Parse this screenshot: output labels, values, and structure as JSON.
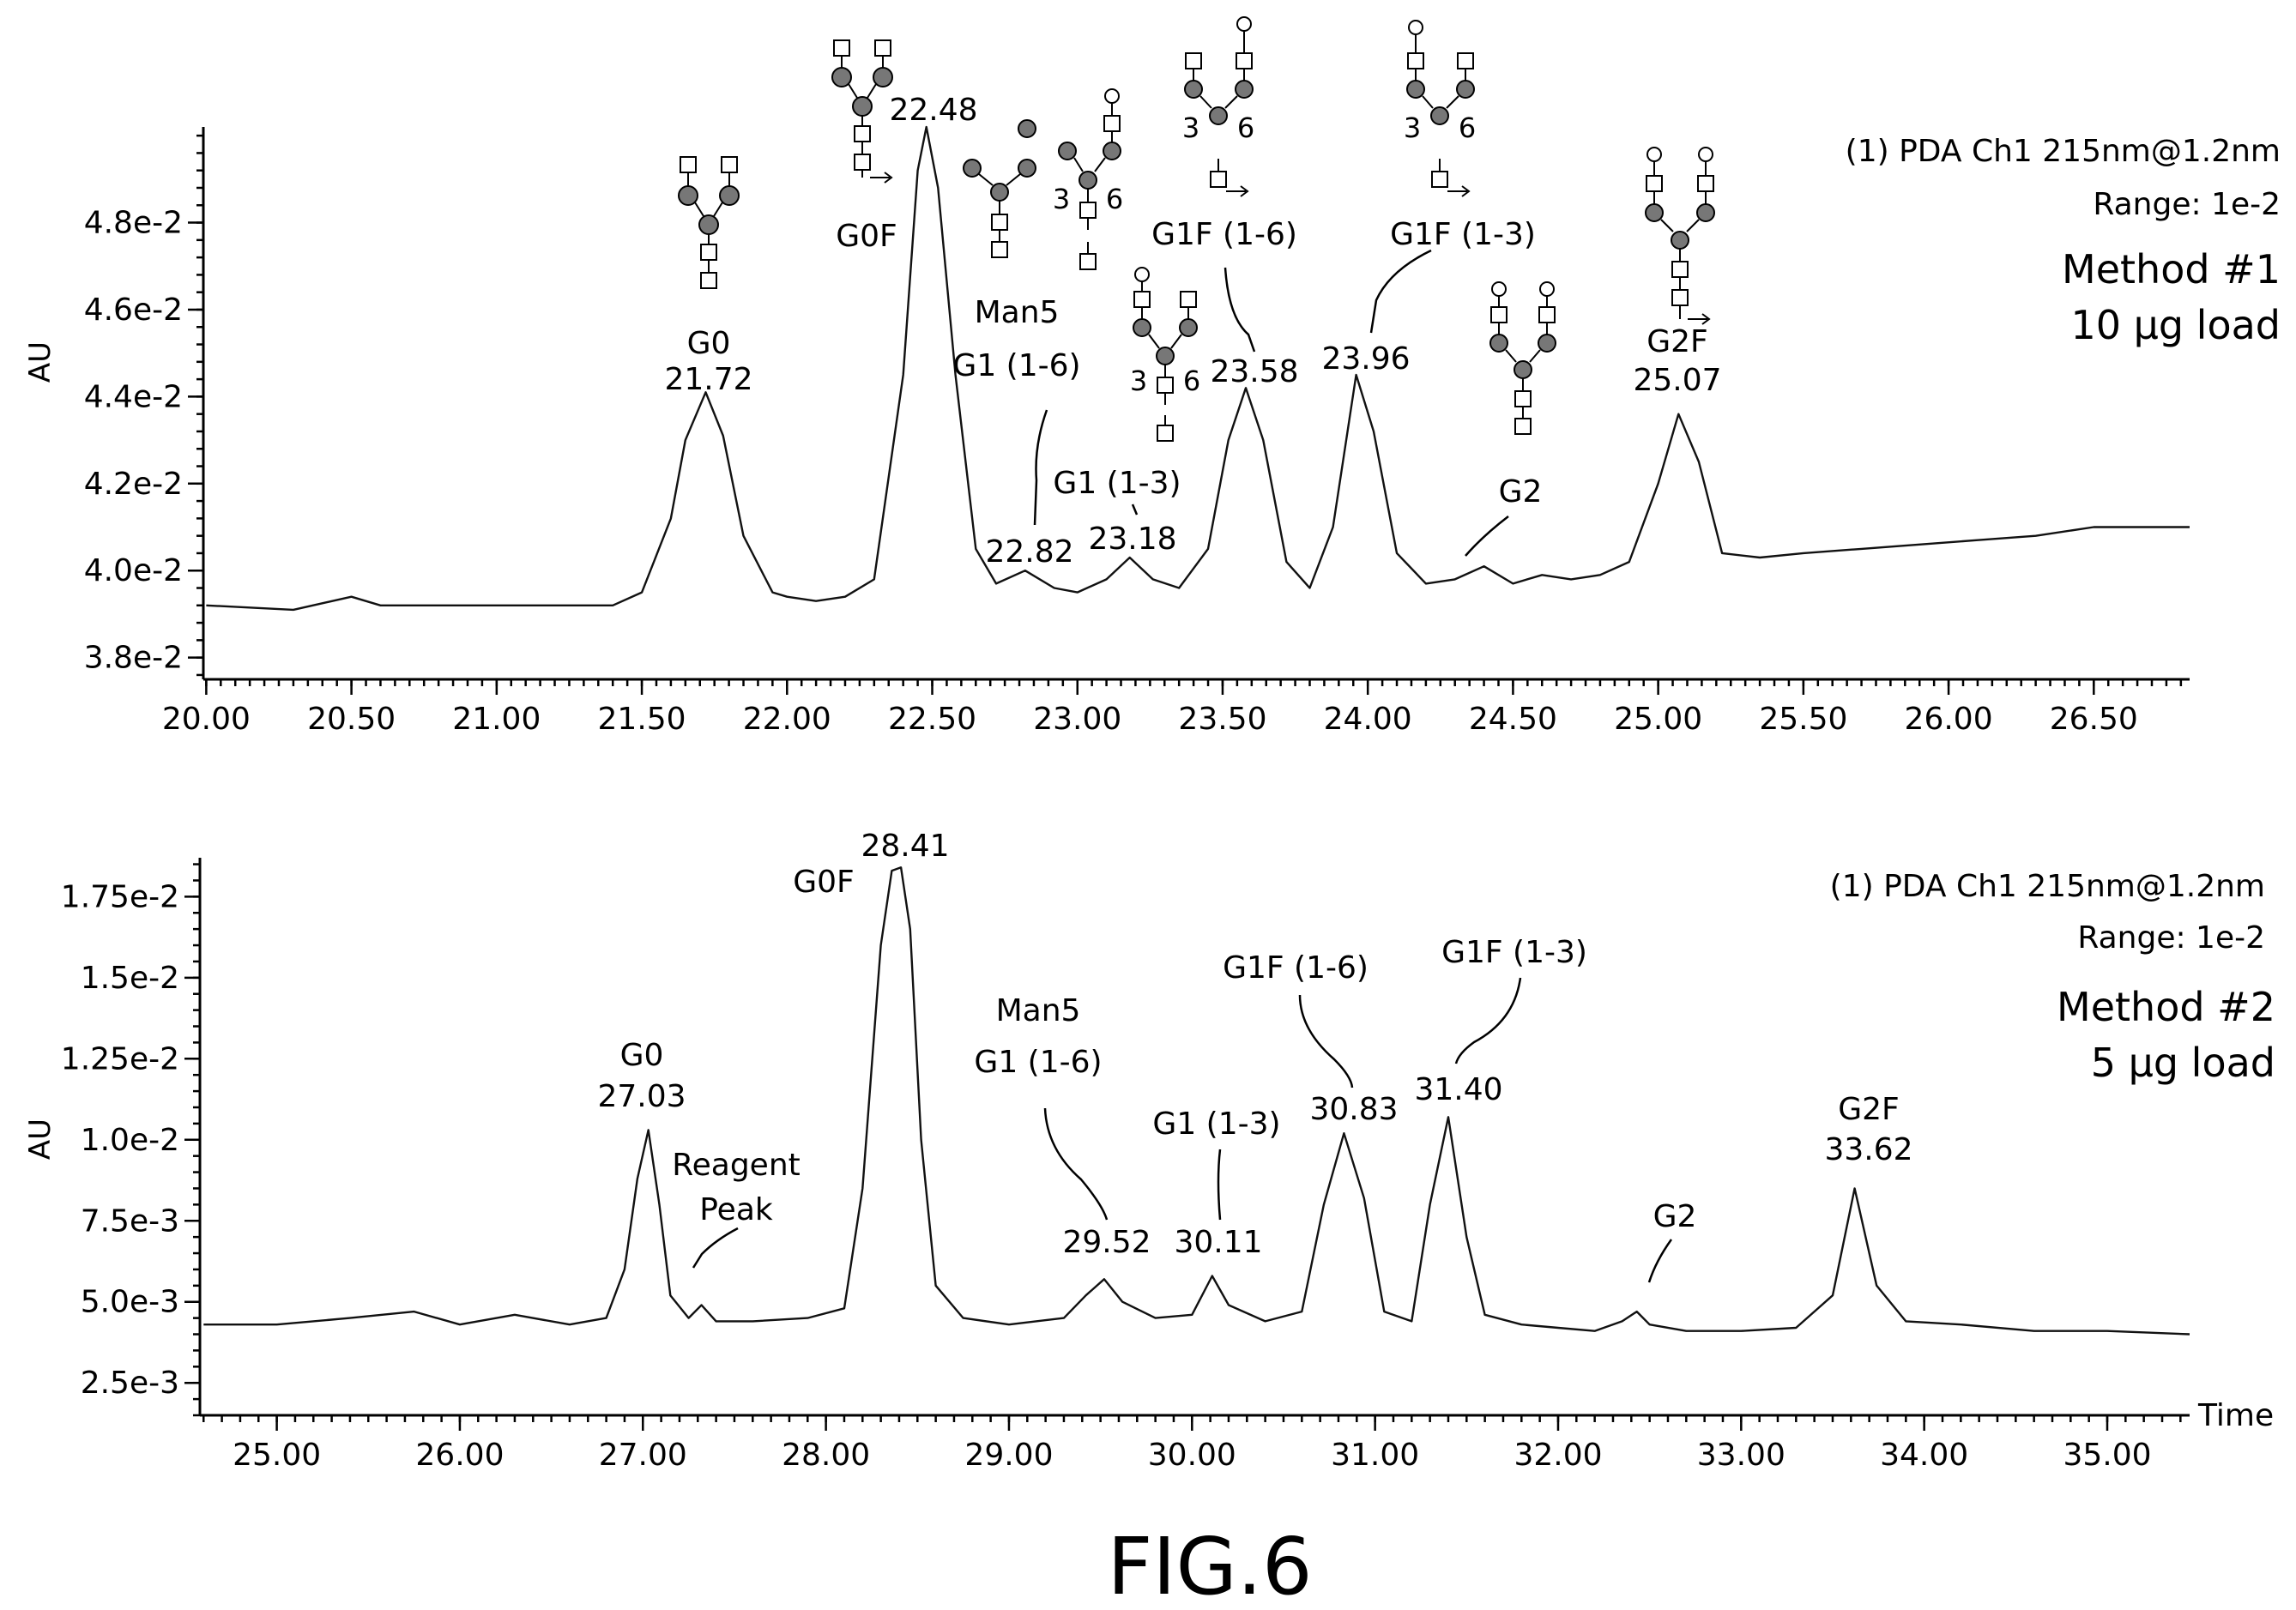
{
  "figure_label": "FIG.6",
  "chart_data": [
    {
      "type": "line",
      "ylabel": "AU",
      "xlabel": "",
      "xlim": [
        19.99,
        26.83
      ],
      "ylim": [
        0.0375,
        0.0502
      ],
      "x_ticks": [
        "20.00",
        "20.50",
        "21.00",
        "21.50",
        "22.00",
        "22.50",
        "23.00",
        "23.50",
        "24.00",
        "24.50",
        "25.00",
        "25.50",
        "26.00",
        "26.50"
      ],
      "y_ticks": [
        "3.8e-2",
        "4.0e-2",
        "4.2e-2",
        "4.4e-2",
        "4.6e-2",
        "4.8e-2"
      ],
      "y_tick_values": [
        0.038,
        0.04,
        0.042,
        0.044,
        0.046,
        0.048
      ],
      "info_line1": "(1) PDA Ch1 215nm@1.2nm",
      "info_line2": "Range: 1e-2",
      "method_line1": "Method #1",
      "method_line2": "10 μg load",
      "series": [
        {
          "x": [
            20.0,
            20.3,
            20.5,
            20.6,
            20.8,
            21.0,
            21.2,
            21.4,
            21.5,
            21.6,
            21.65,
            21.72,
            21.78,
            21.85,
            21.95,
            22.0,
            22.1,
            22.2,
            22.3,
            22.4,
            22.45,
            22.48,
            22.52,
            22.58,
            22.65,
            22.72,
            22.82,
            22.92,
            23.0,
            23.1,
            23.18,
            23.26,
            23.35,
            23.45,
            23.52,
            23.58,
            23.64,
            23.72,
            23.8,
            23.88,
            23.96,
            24.02,
            24.1,
            24.2,
            24.3,
            24.4,
            24.5,
            24.6,
            24.7,
            24.8,
            24.9,
            25.0,
            25.07,
            25.14,
            25.22,
            25.35,
            25.5,
            25.7,
            25.9,
            26.1,
            26.3,
            26.5,
            26.83
          ],
          "y": [
            0.0392,
            0.0391,
            0.0394,
            0.0392,
            0.0392,
            0.0392,
            0.0392,
            0.0392,
            0.0395,
            0.0412,
            0.043,
            0.0441,
            0.0431,
            0.0408,
            0.0395,
            0.0394,
            0.0393,
            0.0394,
            0.0398,
            0.0445,
            0.0492,
            0.0502,
            0.0488,
            0.0445,
            0.0405,
            0.0397,
            0.04,
            0.0396,
            0.0395,
            0.0398,
            0.0403,
            0.0398,
            0.0396,
            0.0405,
            0.043,
            0.0442,
            0.043,
            0.0402,
            0.0396,
            0.041,
            0.0445,
            0.0432,
            0.0404,
            0.0397,
            0.0398,
            0.0401,
            0.0397,
            0.0399,
            0.0398,
            0.0399,
            0.0402,
            0.042,
            0.0436,
            0.0425,
            0.0404,
            0.0403,
            0.0404,
            0.0405,
            0.0406,
            0.0407,
            0.0408,
            0.041,
            0.041
          ]
        }
      ],
      "peaks": [
        {
          "rt": "21.72",
          "name": "G0"
        },
        {
          "rt": "22.48",
          "name": "G0F"
        },
        {
          "rt": "22.82",
          "name": "Man5",
          "name2": "G1 (1-6)"
        },
        {
          "rt": "23.18",
          "name": "G1 (1-3)"
        },
        {
          "rt": "23.58",
          "name": "G1F (1-6)"
        },
        {
          "rt": "23.96",
          "name": "G1F (1-3)"
        },
        {
          "name": "G2"
        },
        {
          "rt": "25.07",
          "name": "G2F"
        }
      ],
      "glycan_arm_labels": {
        "left": "3",
        "right": "6"
      }
    },
    {
      "type": "line",
      "ylabel": "AU",
      "xlabel": "Time",
      "xlim": [
        24.58,
        35.45
      ],
      "ylim": [
        0.0015,
        0.0187
      ],
      "x_ticks": [
        "25.00",
        "26.00",
        "27.00",
        "28.00",
        "29.00",
        "30.00",
        "31.00",
        "32.00",
        "33.00",
        "34.00",
        "35.00"
      ],
      "y_ticks": [
        "2.5e-3",
        "5.0e-3",
        "7.5e-3",
        "1.0e-2",
        "1.25e-2",
        "1.5e-2",
        "1.75e-2"
      ],
      "y_tick_values": [
        0.0025,
        0.005,
        0.0075,
        0.01,
        0.0125,
        0.015,
        0.0175
      ],
      "info_line1": "(1) PDA Ch1 215nm@1.2nm",
      "info_line2": "Range: 1e-2",
      "method_line1": "Method #2",
      "method_line2": "5 μg load",
      "series": [
        {
          "x": [
            24.6,
            25.0,
            25.4,
            25.75,
            26.0,
            26.3,
            26.6,
            26.8,
            26.9,
            26.97,
            27.03,
            27.09,
            27.15,
            27.25,
            27.32,
            27.4,
            27.6,
            27.9,
            28.1,
            28.2,
            28.3,
            28.36,
            28.41,
            28.46,
            28.52,
            28.6,
            28.75,
            29.0,
            29.3,
            29.42,
            29.52,
            29.62,
            29.8,
            30.0,
            30.11,
            30.2,
            30.4,
            30.6,
            30.72,
            30.83,
            30.94,
            31.05,
            31.2,
            31.3,
            31.4,
            31.5,
            31.6,
            31.8,
            32.0,
            32.2,
            32.35,
            32.43,
            32.5,
            32.7,
            33.0,
            33.3,
            33.5,
            33.62,
            33.74,
            33.9,
            34.2,
            34.6,
            35.0,
            35.45
          ],
          "y": [
            0.0043,
            0.0043,
            0.0045,
            0.0047,
            0.0043,
            0.0046,
            0.0043,
            0.0045,
            0.006,
            0.0088,
            0.0103,
            0.008,
            0.0052,
            0.0045,
            0.0049,
            0.0044,
            0.0044,
            0.0045,
            0.0048,
            0.0085,
            0.016,
            0.0183,
            0.0184,
            0.0165,
            0.01,
            0.0055,
            0.0045,
            0.0043,
            0.0045,
            0.0052,
            0.0057,
            0.005,
            0.0045,
            0.0046,
            0.0058,
            0.0049,
            0.0044,
            0.0047,
            0.008,
            0.0102,
            0.0082,
            0.0047,
            0.0044,
            0.008,
            0.0107,
            0.007,
            0.0046,
            0.0043,
            0.0042,
            0.0041,
            0.0044,
            0.0047,
            0.0043,
            0.0041,
            0.0041,
            0.0042,
            0.0052,
            0.0085,
            0.0055,
            0.0044,
            0.0043,
            0.0041,
            0.0041,
            0.004
          ]
        }
      ],
      "peaks": [
        {
          "rt": "27.03",
          "name": "G0"
        },
        {
          "name": "Reagent",
          "name2": "Peak"
        },
        {
          "rt": "28.41",
          "name": "G0F"
        },
        {
          "rt": "29.52",
          "name": "Man5",
          "name2": "G1 (1-6)"
        },
        {
          "rt": "30.11",
          "name": "G1 (1-3)"
        },
        {
          "rt": "30.83",
          "name": "G1F (1-6)"
        },
        {
          "rt": "31.40",
          "name": "G1F (1-3)"
        },
        {
          "name": "G2"
        },
        {
          "rt": "33.62",
          "name": "G2F"
        }
      ]
    }
  ]
}
